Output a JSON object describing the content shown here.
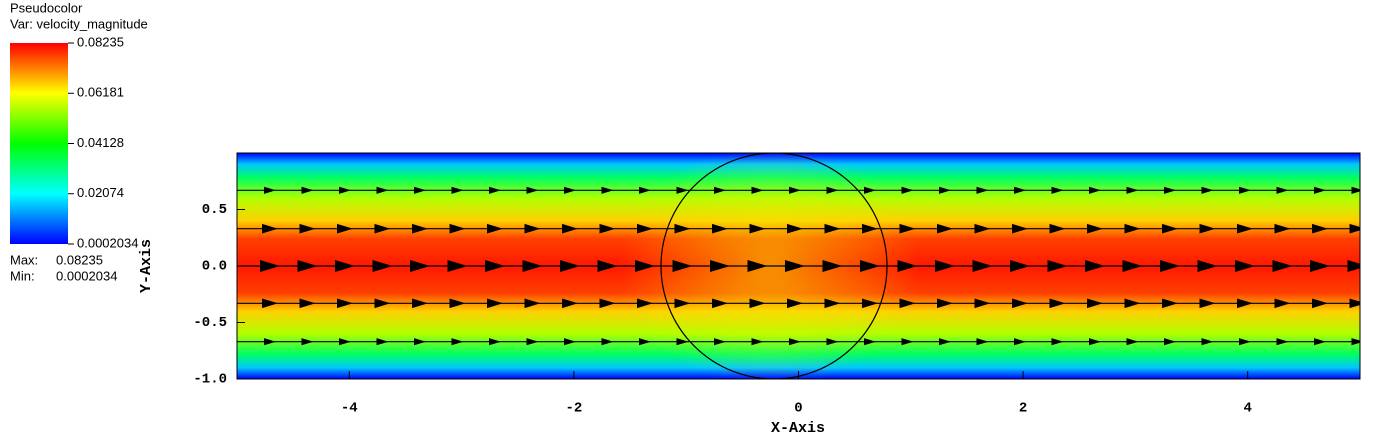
{
  "chart_data": {
    "type": "pseudocolor",
    "plot_name": "Pseudocolor",
    "variable_label": "Var: velocity_magnitude",
    "colorbar_range": [
      0.0002034,
      0.08235
    ],
    "colorbar_ticks": [
      0.08235,
      0.06181,
      0.04128,
      0.02074,
      0.0002034
    ],
    "max_label": "Max:",
    "max": 0.08235,
    "min_label": "Min:",
    "min": 0.0002034,
    "xlabel": "X-Axis",
    "ylabel": "Y-Axis",
    "xlim": [
      -5,
      5
    ],
    "ylim": [
      -1,
      1
    ],
    "xticks": [
      -4,
      -2,
      0,
      2,
      4
    ],
    "yticks": [
      0.5,
      {
        "value": 0,
        "label": "0.0"
      },
      -0.5,
      {
        "value": -1,
        "label": "-1.0"
      }
    ]
  }
}
